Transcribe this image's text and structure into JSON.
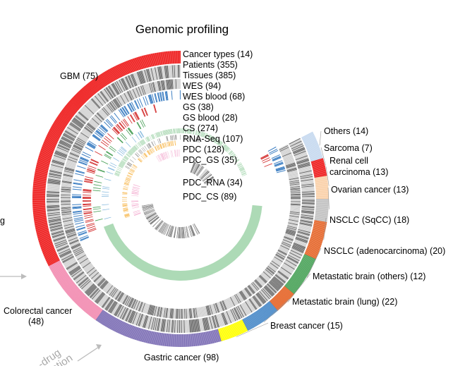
{
  "title": "Genomic profiling",
  "track_legend": [
    {
      "key": "cancer_types",
      "label": "Cancer types (14)"
    },
    {
      "key": "patients",
      "label": "Patients (355)"
    },
    {
      "key": "tissues",
      "label": "Tissues (385)"
    },
    {
      "key": "wes",
      "label": "WES (94)"
    },
    {
      "key": "wes_blood",
      "label": "WES blood (68)"
    },
    {
      "key": "gs",
      "label": "GS (38)"
    },
    {
      "key": "gs_blood",
      "label": "GS blood (28)"
    },
    {
      "key": "cs",
      "label": "CS (274)"
    },
    {
      "key": "rna_seq",
      "label": "RNA-Seq (107)"
    },
    {
      "key": "pdc",
      "label": "PDC (128)"
    },
    {
      "key": "pdc_gs",
      "label": "PDC_GS (35)"
    },
    {
      "key": "pdc_rna",
      "label": "PDC_RNA (34)"
    },
    {
      "key": "pdc_cs",
      "label": "PDC_CS (89)"
    }
  ],
  "cancer_types": [
    {
      "key": "gbm",
      "label": "GBM (75)",
      "color": "#ee1c1c"
    },
    {
      "key": "colorectal",
      "label": "Colorectal cancer (48)",
      "color": "#f28cb1"
    },
    {
      "key": "gastric",
      "label": "Gastric cancer (98)",
      "color": "#7d6fb5"
    },
    {
      "key": "breast",
      "label": "Breast cancer (15)",
      "color": "#ffff00"
    },
    {
      "key": "met_brain_lung",
      "label": "Metastatic brain (lung) (22)",
      "color": "#4a8ac8"
    },
    {
      "key": "met_brain_others",
      "label": "Metastatic brain (others) (12)",
      "color": "#e5662a"
    },
    {
      "key": "nsclc_adeno",
      "label": "NSCLC (adenocarcinoma) (20)",
      "color": "#4ba35a"
    },
    {
      "key": "nsclc_sqcc",
      "label": "NSCLC (SqCC) (18)",
      "color": "#e5662a"
    },
    {
      "key": "ovarian",
      "label": "Ovarian cancer (13)",
      "color": "#c1c1c1"
    },
    {
      "key": "renal",
      "label": "Renal cell carcinoma (13)",
      "color": "#fad0a8"
    },
    {
      "key": "sarcoma",
      "label": "Sarcoma (7)",
      "color": "#ee1c1c"
    },
    {
      "key": "others",
      "label": "Others (14)",
      "color": "#c6d9ef"
    }
  ],
  "colors": {
    "wes": "#3a7dc2",
    "wes_blood": "#d32f2f",
    "gs": "#3f9a4e",
    "gs_blood": "#7eb5dc",
    "rna_seq": "#9fd3a9",
    "pdc": "#7a7a7a",
    "pdc_gs": "#f5a623",
    "pdc_rna": "#ef8fbf",
    "pdc_cs": "#222222",
    "patient_dark": "#6d6d6d",
    "patient_light": "#d0d0d0"
  },
  "side_text": {
    "left_edge": "g",
    "arrow_text": "-drug ation"
  }
}
